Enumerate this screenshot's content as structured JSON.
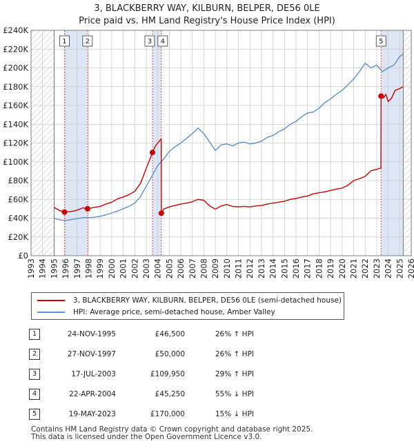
{
  "chart_data": {
    "type": "line",
    "title": "3, BLACKBERRY WAY, KILBURN, BELPER, DE56 0LE",
    "subtitle": "Price paid vs. HM Land Registry's House Price Index (HPI)",
    "xlabel": "",
    "ylabel": "",
    "xlim": [
      1993,
      2026
    ],
    "ylim": [
      0,
      240000
    ],
    "x_ticks": [
      "1993",
      "1994",
      "1995",
      "1996",
      "1997",
      "1998",
      "1999",
      "2000",
      "2001",
      "2002",
      "2003",
      "2004",
      "2005",
      "2006",
      "2007",
      "2008",
      "2009",
      "2010",
      "2011",
      "2012",
      "2013",
      "2014",
      "2015",
      "2016",
      "2017",
      "2018",
      "2019",
      "2020",
      "2021",
      "2022",
      "2023",
      "2024",
      "2025",
      "2026"
    ],
    "y_ticks": [
      0,
      20000,
      40000,
      60000,
      80000,
      100000,
      120000,
      140000,
      160000,
      180000,
      200000,
      220000,
      240000
    ],
    "y_tick_labels": [
      "£0",
      "£20K",
      "£40K",
      "£60K",
      "£80K",
      "£100K",
      "£120K",
      "£140K",
      "£160K",
      "£180K",
      "£200K",
      "£220K",
      "£240K"
    ],
    "hatched_ranges": [
      [
        1993,
        1995
      ],
      [
        2025.3,
        2026
      ]
    ],
    "colors": {
      "property": "#cc0000",
      "hpi": "#5b8fd0",
      "band": "#dde6f5",
      "grid": "#cccccc",
      "marker_line": "#d05050"
    },
    "series": [
      {
        "name": "3, BLACKBERRY WAY, KILBURN, BELPER, DE56 0LE (semi-detached house)",
        "color": "#cc0000",
        "x": [
          1995.0,
          1995.5,
          1995.9,
          1996.5,
          1997.0,
          1997.5,
          1997.9,
          1998.5,
          1999.0,
          1999.5,
          2000.0,
          2000.5,
          2001.0,
          2001.5,
          2002.0,
          2002.5,
          2003.0,
          2003.54,
          2003.8,
          2004.1,
          2004.3,
          2004.31,
          2004.5,
          2005.0,
          2005.5,
          2006.0,
          2006.5,
          2007.0,
          2007.5,
          2008.0,
          2008.5,
          2009.0,
          2009.5,
          2010.0,
          2010.5,
          2011.0,
          2011.5,
          2012.0,
          2012.5,
          2013.0,
          2013.5,
          2014.0,
          2014.5,
          2015.0,
          2015.5,
          2016.0,
          2016.5,
          2017.0,
          2017.5,
          2018.0,
          2018.5,
          2019.0,
          2019.5,
          2020.0,
          2020.5,
          2021.0,
          2021.5,
          2022.0,
          2022.5,
          2023.0,
          2023.37,
          2023.38,
          2023.6,
          2023.8,
          2024.0,
          2024.3,
          2024.6,
          2025.0,
          2025.3
        ],
        "values": [
          51500,
          48000,
          46500,
          47000,
          48500,
          51000,
          50000,
          51500,
          52500,
          55000,
          57000,
          60500,
          62500,
          65000,
          68500,
          77000,
          93000,
          109950,
          117000,
          121500,
          124500,
          45250,
          49500,
          52000,
          53500,
          55000,
          56000,
          57500,
          60000,
          59000,
          53000,
          49500,
          53000,
          54500,
          52500,
          52000,
          52500,
          52000,
          53000,
          53500,
          55000,
          56000,
          57000,
          58000,
          60000,
          61000,
          62500,
          63500,
          66000,
          67000,
          68000,
          69500,
          71000,
          72000,
          75000,
          80000,
          82000,
          84500,
          90500,
          92000,
          93500,
          170000,
          168000,
          172000,
          164000,
          168000,
          176000,
          178000,
          180000
        ]
      },
      {
        "name": "HPI: Average price, semi-detached house, Amber Valley",
        "color": "#5b8fd0",
        "x": [
          1995.0,
          1995.5,
          1996.0,
          1996.5,
          1997.0,
          1997.5,
          1998.0,
          1998.5,
          1999.0,
          1999.5,
          2000.0,
          2000.5,
          2001.0,
          2001.5,
          2002.0,
          2002.5,
          2003.0,
          2003.5,
          2004.0,
          2004.5,
          2005.0,
          2005.5,
          2006.0,
          2006.5,
          2007.0,
          2007.5,
          2008.0,
          2008.5,
          2009.0,
          2009.5,
          2010.0,
          2010.5,
          2011.0,
          2011.5,
          2012.0,
          2012.5,
          2013.0,
          2013.5,
          2014.0,
          2014.5,
          2015.0,
          2015.5,
          2016.0,
          2016.5,
          2017.0,
          2017.5,
          2018.0,
          2018.5,
          2019.0,
          2019.5,
          2020.0,
          2020.5,
          2021.0,
          2021.5,
          2022.0,
          2022.5,
          2023.0,
          2023.5,
          2024.0,
          2024.5,
          2025.0,
          2025.3
        ],
        "values": [
          40000,
          38000,
          37500,
          38500,
          39500,
          40500,
          40500,
          41000,
          42000,
          43500,
          45500,
          47500,
          50000,
          52500,
          56000,
          63000,
          74000,
          85000,
          96000,
          103000,
          111000,
          116000,
          120000,
          125000,
          130000,
          136000,
          130000,
          121000,
          112000,
          118000,
          119000,
          117000,
          120000,
          121000,
          119000,
          120000,
          122000,
          126000,
          128000,
          132000,
          135000,
          140000,
          143000,
          148000,
          152000,
          153000,
          157000,
          163000,
          167000,
          172000,
          176000,
          182000,
          188000,
          196000,
          205000,
          200000,
          203000,
          196000,
          200000,
          203000,
          212000,
          215000
        ]
      }
    ],
    "sales": [
      {
        "label": "1",
        "x": 1995.9,
        "value": 46500
      },
      {
        "label": "2",
        "x": 1997.9,
        "value": 50000
      },
      {
        "label": "3",
        "x": 2003.54,
        "value": 109950
      },
      {
        "label": "4",
        "x": 2004.31,
        "value": 45250
      },
      {
        "label": "5",
        "x": 2023.38,
        "value": 170000
      }
    ],
    "sale_bands": [
      [
        1995.9,
        1997.9
      ],
      [
        2003.54,
        2004.31
      ],
      [
        2023.38,
        2025.3
      ]
    ]
  },
  "legend": {
    "property_label": "3, BLACKBERRY WAY, KILBURN, BELPER, DE56 0LE (semi-detached house)",
    "hpi_label": "HPI: Average price, semi-detached house, Amber Valley"
  },
  "table": [
    {
      "num": "1",
      "date": "24-NOV-1995",
      "price": "£46,500",
      "hpi": "26% ↑ HPI"
    },
    {
      "num": "2",
      "date": "27-NOV-1997",
      "price": "£50,000",
      "hpi": "26% ↑ HPI"
    },
    {
      "num": "3",
      "date": "17-JUL-2003",
      "price": "£109,950",
      "hpi": "29% ↑ HPI"
    },
    {
      "num": "4",
      "date": "22-APR-2004",
      "price": "£45,250",
      "hpi": "55% ↓ HPI"
    },
    {
      "num": "5",
      "date": "19-MAY-2023",
      "price": "£170,000",
      "hpi": "15% ↓ HPI"
    }
  ],
  "footer": {
    "line1": "Contains HM Land Registry data © Crown copyright and database right 2025.",
    "line2": "This data is licensed under the Open Government Licence v3.0."
  }
}
